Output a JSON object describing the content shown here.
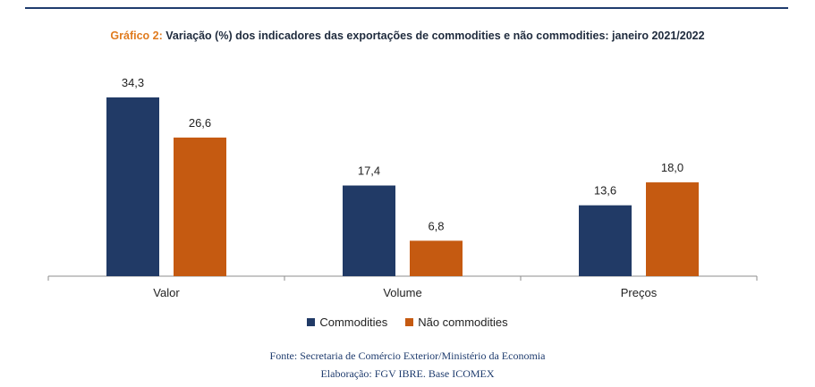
{
  "title_prefix": "Gráfico 2:",
  "title_main": "Variação (%) dos indicadores das exportações de commodities e não commodities: janeiro 2021/2022",
  "colors": {
    "commodities": "#213a66",
    "nao_commodities": "#c55a11",
    "accent": "#e07b1f",
    "rule": "#1f3c6e"
  },
  "chart_data": {
    "type": "bar",
    "categories": [
      "Valor",
      "Volume",
      "Preços"
    ],
    "series": [
      {
        "name": "Commodities",
        "values": [
          34.3,
          17.4,
          13.6
        ],
        "labels": [
          "34,3",
          "17,4",
          "13,6"
        ]
      },
      {
        "name": "Não commodities",
        "values": [
          26.6,
          6.8,
          18.0
        ],
        "labels": [
          "26,6",
          "6,8",
          "18,0"
        ]
      }
    ],
    "title": "Variação (%) dos indicadores das exportações de commodities e não commodities: janeiro 2021/2022",
    "xlabel": "",
    "ylabel": "",
    "ylim": [
      0,
      34.3
    ],
    "grid": false,
    "legend_position": "bottom"
  },
  "legend": [
    {
      "label": "Commodities"
    },
    {
      "label": "Não commodities"
    }
  ],
  "source_line1": "Fonte: Secretaria de Comércio Exterior/Ministério da Economia",
  "source_line2": "Elaboração: FGV IBRE. Base ICOMEX"
}
